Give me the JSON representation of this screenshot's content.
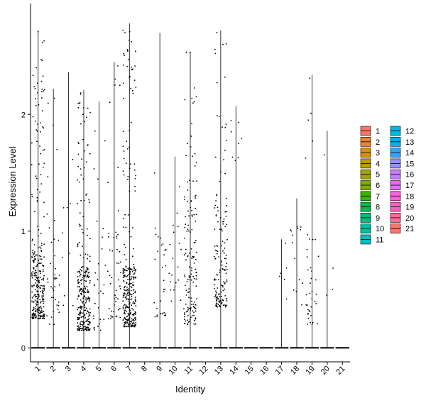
{
  "chart_data": {
    "type": "violin",
    "xlabel": "Identity",
    "ylabel": "Expression Level",
    "categories": [
      "1",
      "2",
      "3",
      "4",
      "5",
      "6",
      "7",
      "8",
      "9",
      "10",
      "11",
      "12",
      "13",
      "14",
      "15",
      "16",
      "17",
      "18",
      "19",
      "20",
      "21"
    ],
    "ylim": [
      -0.12,
      2.95
    ],
    "yticks": [
      0,
      1,
      2
    ],
    "max_values": [
      2.72,
      2.22,
      2.36,
      2.21,
      2.11,
      2.45,
      2.78,
      0,
      2.7,
      1.64,
      2.54,
      0,
      2.72,
      2.07,
      0,
      0,
      0.93,
      1.28,
      2.34,
      1.86,
      0
    ],
    "point_density": [
      300,
      40,
      10,
      300,
      30,
      50,
      300,
      0,
      30,
      20,
      150,
      0,
      150,
      8,
      0,
      0,
      6,
      14,
      40,
      4,
      0
    ],
    "point_low": [
      0.25,
      0.2,
      0.3,
      0.15,
      0.15,
      0.25,
      0.18,
      0,
      0.25,
      0.4,
      0.2,
      0,
      0.35,
      1.6,
      0,
      0,
      0.4,
      0.3,
      0.2,
      0.45,
      0
    ],
    "point_core": [
      0.9,
      1.0,
      0.9,
      0.7,
      1.0,
      1.0,
      0.7,
      0,
      1.0,
      1.2,
      1.3,
      0,
      1.3,
      2.0,
      0,
      0,
      0.9,
      1.2,
      1.0,
      1.8,
      0
    ],
    "legend_position": "right",
    "legend": {
      "columns": [
        [
          "1",
          "2",
          "3",
          "4",
          "5",
          "6",
          "7",
          "8",
          "9",
          "10",
          "11"
        ],
        [
          "12",
          "13",
          "14",
          "15",
          "16",
          "17",
          "18",
          "19",
          "20",
          "21"
        ]
      ],
      "colors": [
        "#F8766D",
        "#EA8331",
        "#D89000",
        "#C09B00",
        "#A3A500",
        "#7CAE00",
        "#39B600",
        "#00BB4E",
        "#00BF7D",
        "#00C1A3",
        "#00BFC4",
        "#00BAE0",
        "#00B0F6",
        "#35A2FF",
        "#9590FF",
        "#C77CFF",
        "#E76BF3",
        "#FA62DB",
        "#FF62BC",
        "#FF6A98",
        "#F8766D"
      ]
    }
  }
}
